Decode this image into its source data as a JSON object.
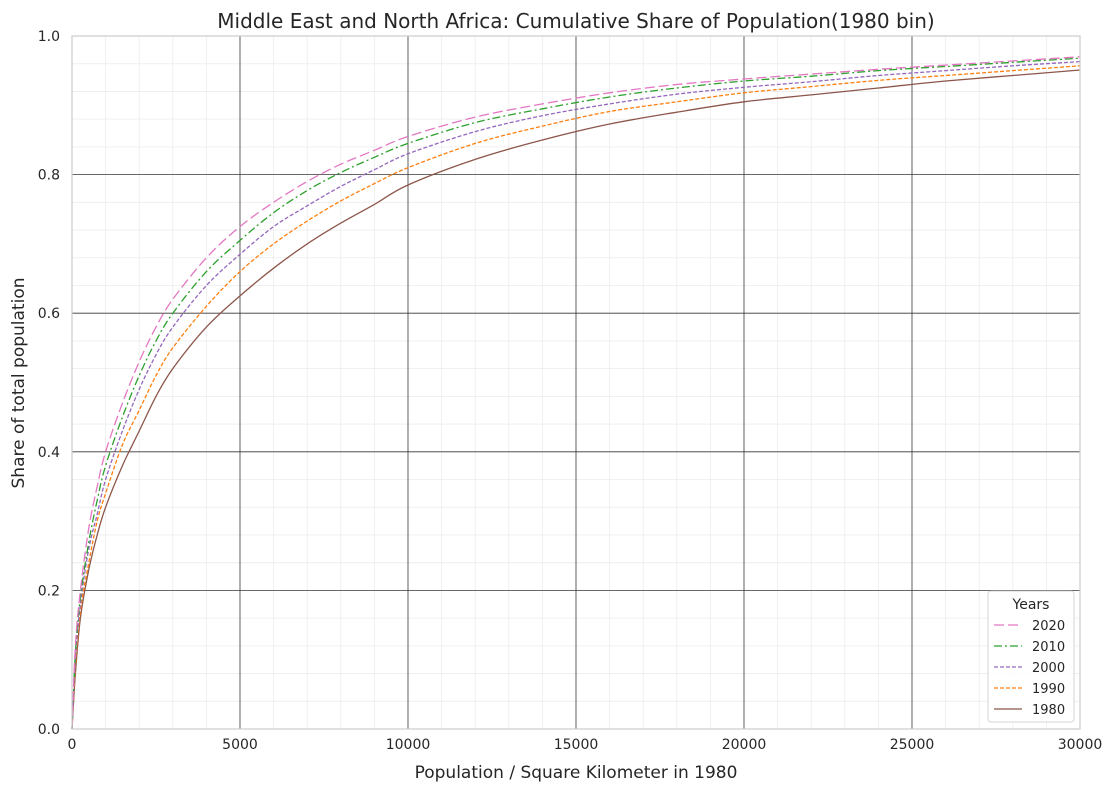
{
  "chart_data": {
    "type": "line",
    "title": "Middle East and North Africa: Cumulative Share of Population(1980 bin)",
    "xlabel": "Population / Square Kilometer in 1980",
    "ylabel": "Share of total population",
    "xlim": [
      0,
      30000
    ],
    "ylim": [
      0,
      1.0
    ],
    "x_ticks": [
      "0",
      "5000",
      "10000",
      "15000",
      "20000",
      "25000",
      "30000"
    ],
    "y_ticks": [
      "0.0",
      "0.2",
      "0.4",
      "0.6",
      "0.8",
      "1.0"
    ],
    "grid": true,
    "legend_title": "Years",
    "legend_position": "bottom-right",
    "x": [
      0,
      100,
      250,
      500,
      750,
      1000,
      1500,
      2000,
      2500,
      3000,
      4000,
      5000,
      6000,
      7000,
      8000,
      9000,
      10000,
      12000,
      14000,
      16000,
      18000,
      20000,
      22000,
      24000,
      26000,
      28000,
      30000
    ],
    "series": [
      {
        "name": "2020",
        "color": "#e377c2",
        "dash": "10,4",
        "values": [
          0.0,
          0.12,
          0.2,
          0.29,
          0.35,
          0.4,
          0.47,
          0.53,
          0.58,
          0.62,
          0.68,
          0.725,
          0.76,
          0.79,
          0.815,
          0.835,
          0.855,
          0.883,
          0.902,
          0.918,
          0.93,
          0.938,
          0.945,
          0.952,
          0.958,
          0.964,
          0.97
        ]
      },
      {
        "name": "2010",
        "color": "#2ca02c",
        "dash": "8,3,2,3",
        "values": [
          0.0,
          0.11,
          0.19,
          0.27,
          0.33,
          0.38,
          0.45,
          0.51,
          0.56,
          0.6,
          0.66,
          0.705,
          0.745,
          0.777,
          0.803,
          0.825,
          0.845,
          0.875,
          0.895,
          0.912,
          0.925,
          0.935,
          0.942,
          0.95,
          0.956,
          0.962,
          0.968
        ]
      },
      {
        "name": "2000",
        "color": "#9467bd",
        "dash": "4,2",
        "values": [
          0.0,
          0.1,
          0.18,
          0.26,
          0.31,
          0.36,
          0.43,
          0.49,
          0.54,
          0.58,
          0.64,
          0.685,
          0.725,
          0.755,
          0.783,
          0.807,
          0.83,
          0.862,
          0.885,
          0.902,
          0.916,
          0.926,
          0.934,
          0.943,
          0.95,
          0.957,
          0.963
        ]
      },
      {
        "name": "1990",
        "color": "#ff7f0e",
        "dash": "4,2",
        "values": [
          0.0,
          0.09,
          0.17,
          0.24,
          0.3,
          0.34,
          0.41,
          0.46,
          0.51,
          0.55,
          0.61,
          0.66,
          0.7,
          0.733,
          0.762,
          0.787,
          0.81,
          0.845,
          0.87,
          0.891,
          0.905,
          0.918,
          0.927,
          0.936,
          0.943,
          0.95,
          0.957
        ]
      },
      {
        "name": "1980",
        "color": "#8c564b",
        "dash": "",
        "values": [
          0.0,
          0.08,
          0.16,
          0.23,
          0.28,
          0.32,
          0.38,
          0.43,
          0.48,
          0.52,
          0.58,
          0.625,
          0.665,
          0.7,
          0.73,
          0.757,
          0.785,
          0.822,
          0.85,
          0.873,
          0.89,
          0.905,
          0.915,
          0.925,
          0.935,
          0.943,
          0.951
        ]
      }
    ]
  }
}
